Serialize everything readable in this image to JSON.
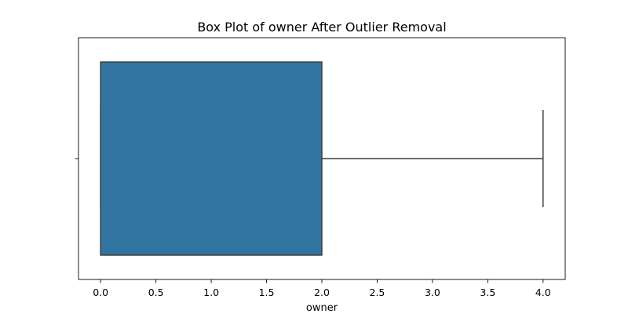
{
  "chart_data": {
    "type": "box",
    "title": "Box Plot of owner After Outlier Removal",
    "xlabel": "owner",
    "ylabel": "",
    "orientation": "horizontal",
    "xlim": [
      -0.2,
      4.2
    ],
    "xticks": [
      0.0,
      0.5,
      1.0,
      1.5,
      2.0,
      2.5,
      3.0,
      3.5,
      4.0
    ],
    "xtick_labels": [
      "0.0",
      "0.5",
      "1.0",
      "1.5",
      "2.0",
      "2.5",
      "3.0",
      "3.5",
      "4.0"
    ],
    "grid": false,
    "box": {
      "whisker_low": 0.0,
      "q1": 0.0,
      "median": 0.0,
      "q3": 2.0,
      "whisker_high": 4.0,
      "color": "#3274a1",
      "edge_color": "#3f3f3f"
    }
  }
}
